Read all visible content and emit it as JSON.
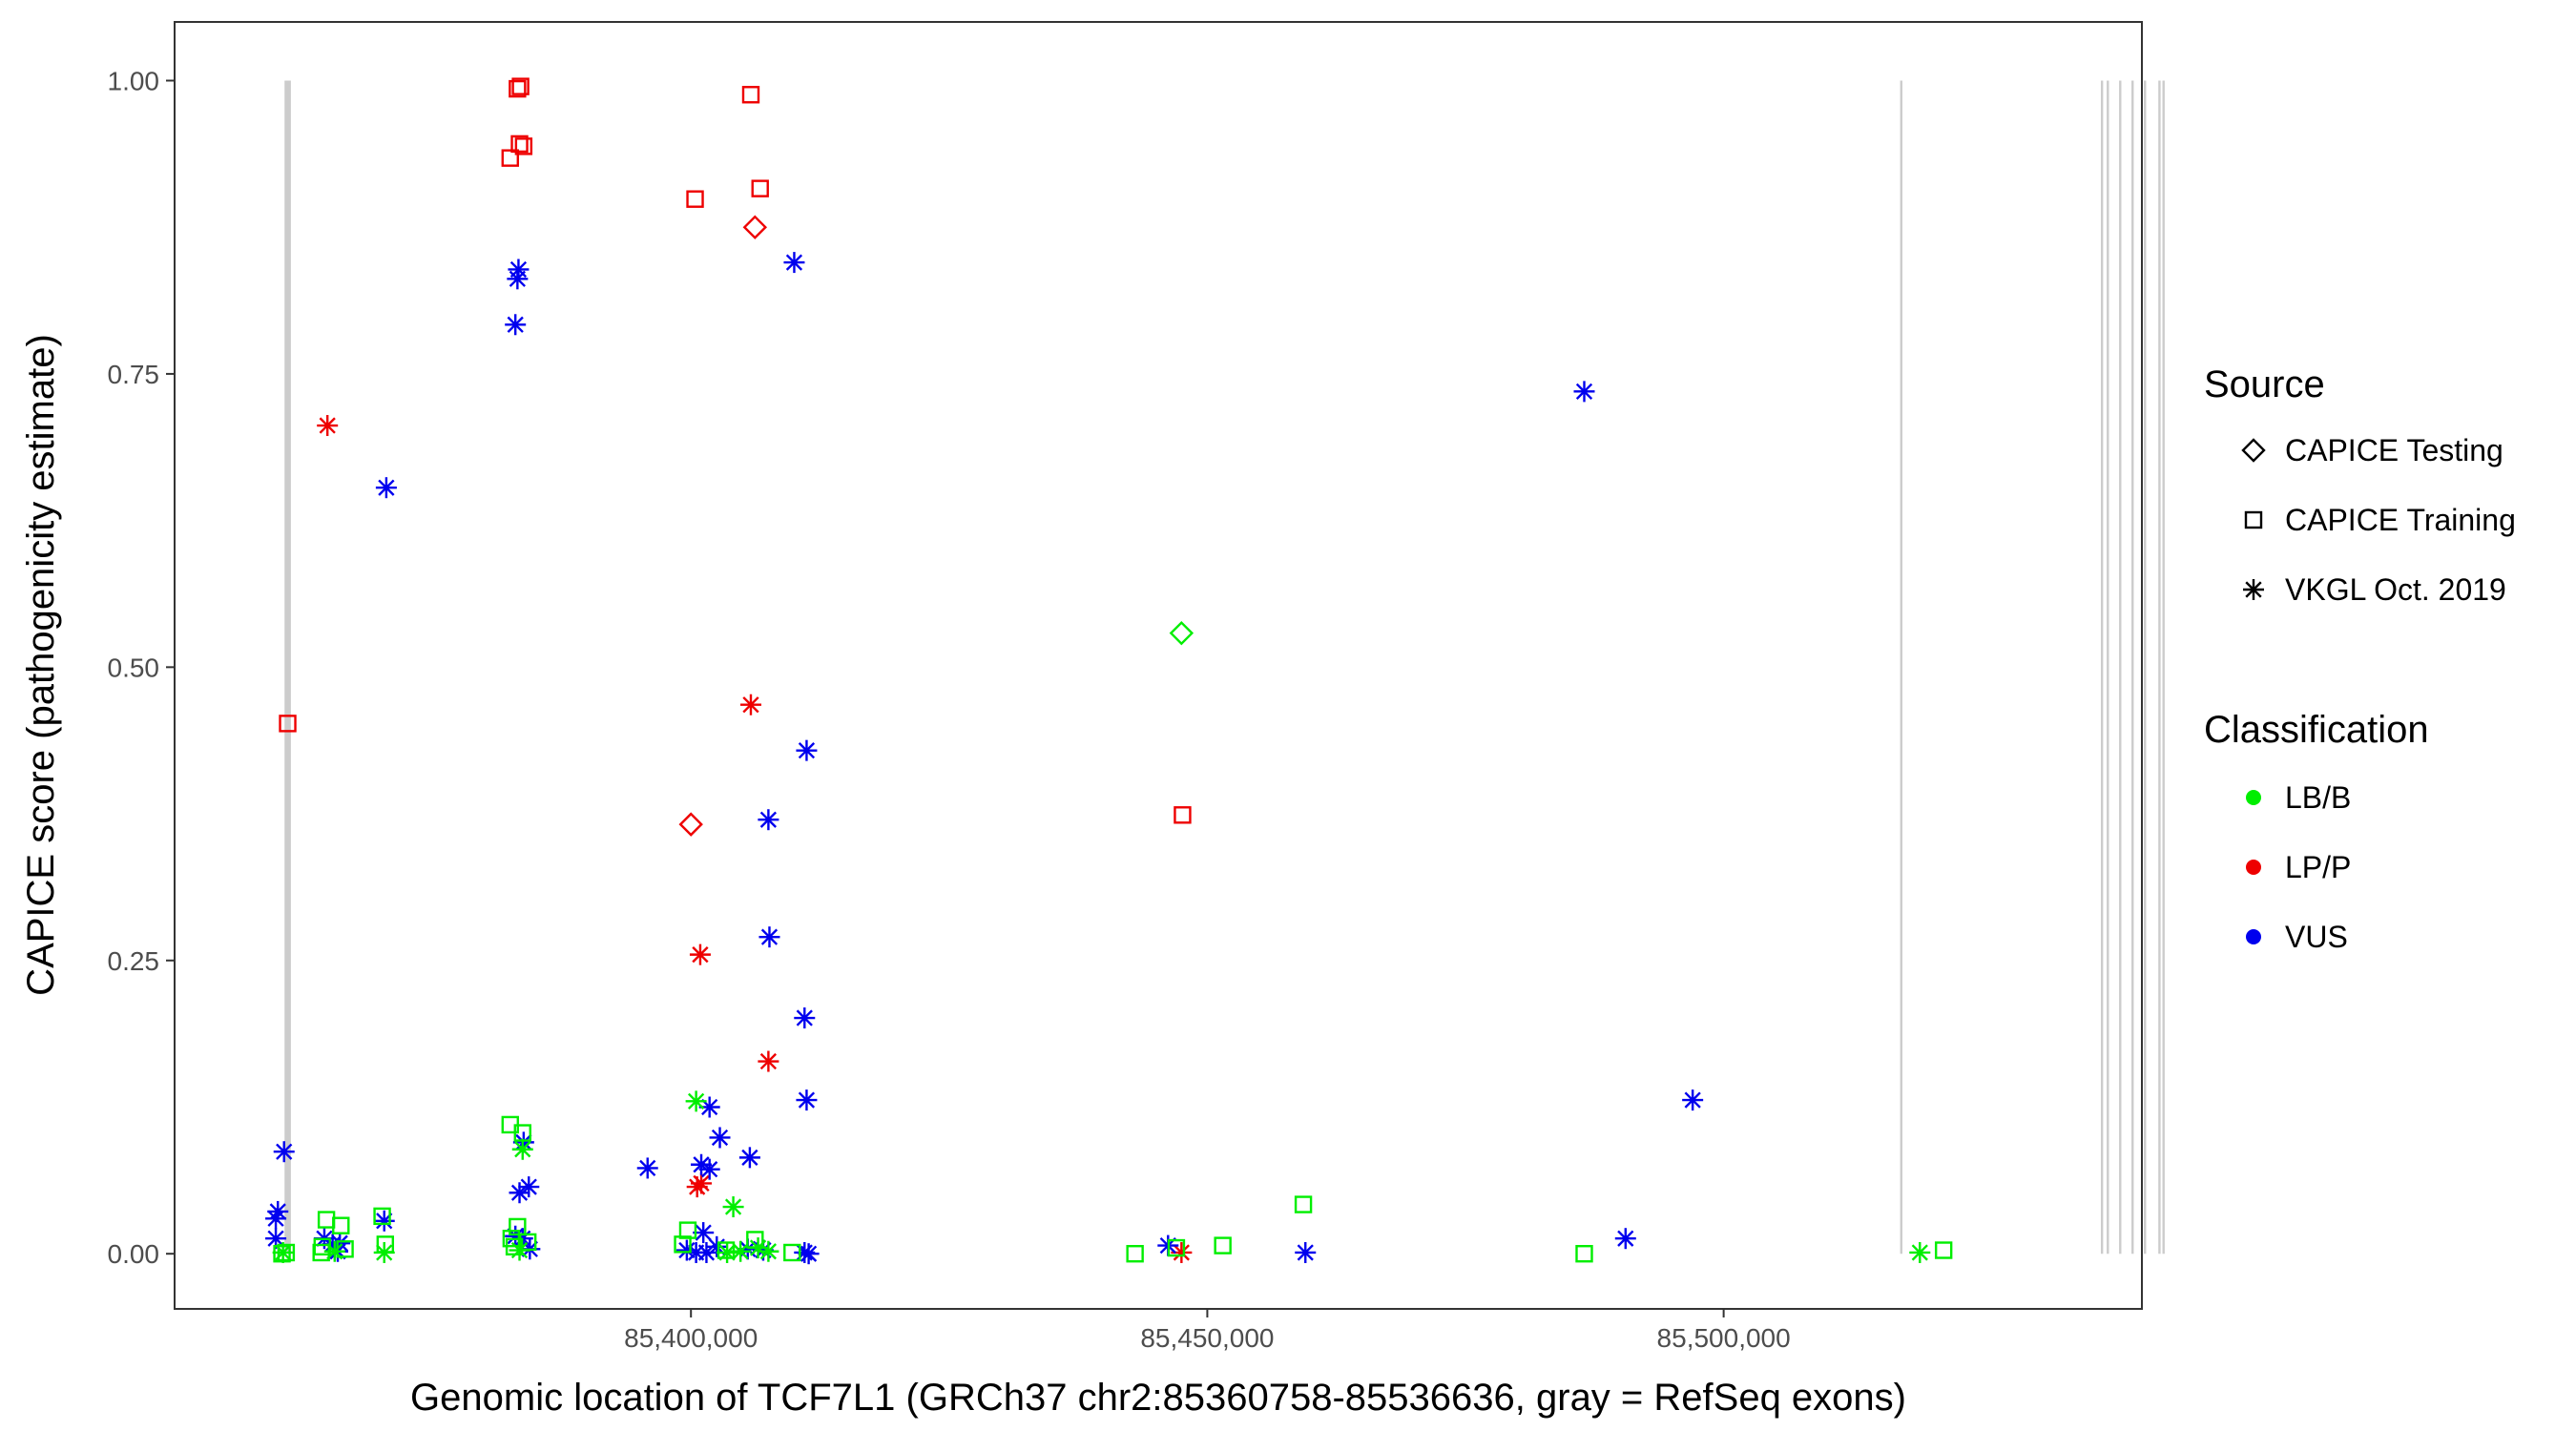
{
  "chart_data": {
    "type": "scatter",
    "title": "",
    "xlabel": "Genomic location of TCF7L1 (GRCh37 chr2:85360758-85536636, gray = RefSeq exons)",
    "ylabel": "CAPICE score (pathogenicity estimate)",
    "xlim": [
      85350000,
      85540500
    ],
    "ylim": [
      -0.047,
      1.05
    ],
    "x_ticks": [
      {
        "value": 85400000,
        "label": "85,400,000"
      },
      {
        "value": 85450000,
        "label": "85,450,000"
      },
      {
        "value": 85500000,
        "label": "85,500,000"
      }
    ],
    "y_ticks": [
      {
        "value": 0.0,
        "label": "0.00"
      },
      {
        "value": 0.25,
        "label": "0.25"
      },
      {
        "value": 0.5,
        "label": "0.50"
      },
      {
        "value": 0.75,
        "label": "0.75"
      },
      {
        "value": 1.0,
        "label": "1.00"
      }
    ],
    "grid": false,
    "exons": [
      85360758,
      85360950,
      85361150,
      85517200,
      85536636,
      85537200,
      85538400,
      85539600,
      85540800,
      85542200,
      85542600
    ],
    "exon_y_range": [
      0,
      1
    ],
    "legend_placement": "right",
    "legends": {
      "source": {
        "title": "Source",
        "items": [
          {
            "label": "CAPICE Testing",
            "shape": "diamond"
          },
          {
            "label": "CAPICE Training",
            "shape": "square"
          },
          {
            "label": "VKGL Oct. 2019",
            "shape": "asterisk"
          }
        ]
      },
      "classification": {
        "title": "Classification",
        "items": [
          {
            "label": "LB/B",
            "color": "#00ee00"
          },
          {
            "label": "LP/P",
            "color": "#ee0000"
          },
          {
            "label": "VUS",
            "color": "#0000ee"
          }
        ]
      }
    },
    "colors": {
      "LB/B": "#00ee00",
      "LP/P": "#ee0000",
      "VUS": "#0000ee",
      "exon": "#cccccc",
      "axis": "#333333"
    },
    "series": [
      {
        "source": "CAPICE Training",
        "classification": "LP/P",
        "points": [
          [
            85360950,
            0.452
          ],
          [
            85382500,
            0.934
          ],
          [
            85383200,
            0.993
          ],
          [
            85383500,
            0.995
          ],
          [
            85383400,
            0.946
          ],
          [
            85383800,
            0.944
          ],
          [
            85400400,
            0.899
          ],
          [
            85405800,
            0.988
          ],
          [
            85406700,
            0.908
          ],
          [
            85447600,
            0.374
          ]
        ]
      },
      {
        "source": "CAPICE Testing",
        "classification": "LP/P",
        "points": [
          [
            85406200,
            0.875
          ],
          [
            85400000,
            0.366
          ]
        ]
      },
      {
        "source": "VKGL Oct. 2019",
        "classification": "LP/P",
        "points": [
          [
            85364800,
            0.706
          ],
          [
            85405800,
            0.468
          ],
          [
            85400900,
            0.255
          ],
          [
            85407500,
            0.164
          ],
          [
            85400600,
            0.057
          ],
          [
            85401000,
            0.06
          ],
          [
            85447500,
            0.001
          ]
        ]
      },
      {
        "source": "VKGL Oct. 2019",
        "classification": "VUS",
        "points": [
          [
            85360000,
            0.036
          ],
          [
            85359800,
            0.03
          ],
          [
            85359800,
            0.013
          ],
          [
            85360600,
            0.087
          ],
          [
            85364500,
            0.013
          ],
          [
            85365300,
            0.008
          ],
          [
            85365800,
            0.002
          ],
          [
            85366000,
            0.009
          ],
          [
            85370500,
            0.653
          ],
          [
            85370300,
            0.028
          ],
          [
            85383300,
            0.839
          ],
          [
            85383200,
            0.831
          ],
          [
            85383000,
            0.792
          ],
          [
            85383800,
            0.095
          ],
          [
            85384300,
            0.057
          ],
          [
            85383400,
            0.052
          ],
          [
            85383000,
            0.015
          ],
          [
            85383700,
            0.013
          ],
          [
            85384400,
            0.004
          ],
          [
            85395800,
            0.073
          ],
          [
            85399600,
            0.003
          ],
          [
            85400500,
            0.001
          ],
          [
            85401500,
            0.001
          ],
          [
            85401200,
            0.018
          ],
          [
            85401000,
            0.076
          ],
          [
            85401800,
            0.125
          ],
          [
            85402800,
            0.099
          ],
          [
            85401800,
            0.072
          ],
          [
            85402500,
            0.006
          ],
          [
            85405700,
            0.082
          ],
          [
            85405500,
            0.004
          ],
          [
            85407000,
            0.003
          ],
          [
            85407500,
            0.37
          ],
          [
            85407600,
            0.27
          ],
          [
            85410000,
            0.845
          ],
          [
            85411200,
            0.429
          ],
          [
            85411000,
            0.201
          ],
          [
            85411200,
            0.131
          ],
          [
            85411000,
            0.001
          ],
          [
            85411400,
            0.0
          ],
          [
            85446200,
            0.007
          ],
          [
            85459500,
            0.001
          ],
          [
            85486500,
            0.735
          ],
          [
            85490500,
            0.013
          ],
          [
            85497000,
            0.131
          ]
        ]
      },
      {
        "source": "VKGL Oct. 2019",
        "classification": "LB/B",
        "points": [
          [
            85360500,
            0.001
          ],
          [
            85365500,
            0.002
          ],
          [
            85370300,
            0.001
          ],
          [
            85383700,
            0.089
          ],
          [
            85383400,
            0.003
          ],
          [
            85400500,
            0.13
          ],
          [
            85404100,
            0.04
          ],
          [
            85403500,
            0.001
          ],
          [
            85404800,
            0.002
          ],
          [
            85406500,
            0.005
          ],
          [
            85407500,
            0.002
          ],
          [
            85519000,
            0.001
          ]
        ]
      },
      {
        "source": "CAPICE Training",
        "classification": "LB/B",
        "points": [
          [
            85360800,
            0.001
          ],
          [
            85360400,
            0.0
          ],
          [
            85364300,
            0.006
          ],
          [
            85364700,
            0.029
          ],
          [
            85364200,
            0.001
          ],
          [
            85366100,
            0.024
          ],
          [
            85366500,
            0.004
          ],
          [
            85370100,
            0.032
          ],
          [
            85370400,
            0.008
          ],
          [
            85382500,
            0.11
          ],
          [
            85382600,
            0.013
          ],
          [
            85382900,
            0.006
          ],
          [
            85383200,
            0.023
          ],
          [
            85383700,
            0.103
          ],
          [
            85384200,
            0.01
          ],
          [
            85399200,
            0.008
          ],
          [
            85399700,
            0.02
          ],
          [
            85403400,
            0.003
          ],
          [
            85406200,
            0.012
          ],
          [
            85409800,
            0.001
          ],
          [
            85443000,
            0.0
          ],
          [
            85447000,
            0.005
          ],
          [
            85451500,
            0.007
          ],
          [
            85459300,
            0.042
          ],
          [
            85486500,
            0.0
          ],
          [
            85521300,
            0.003
          ]
        ]
      },
      {
        "source": "CAPICE Testing",
        "classification": "LB/B",
        "points": [
          [
            85447500,
            0.529
          ]
        ]
      }
    ]
  }
}
